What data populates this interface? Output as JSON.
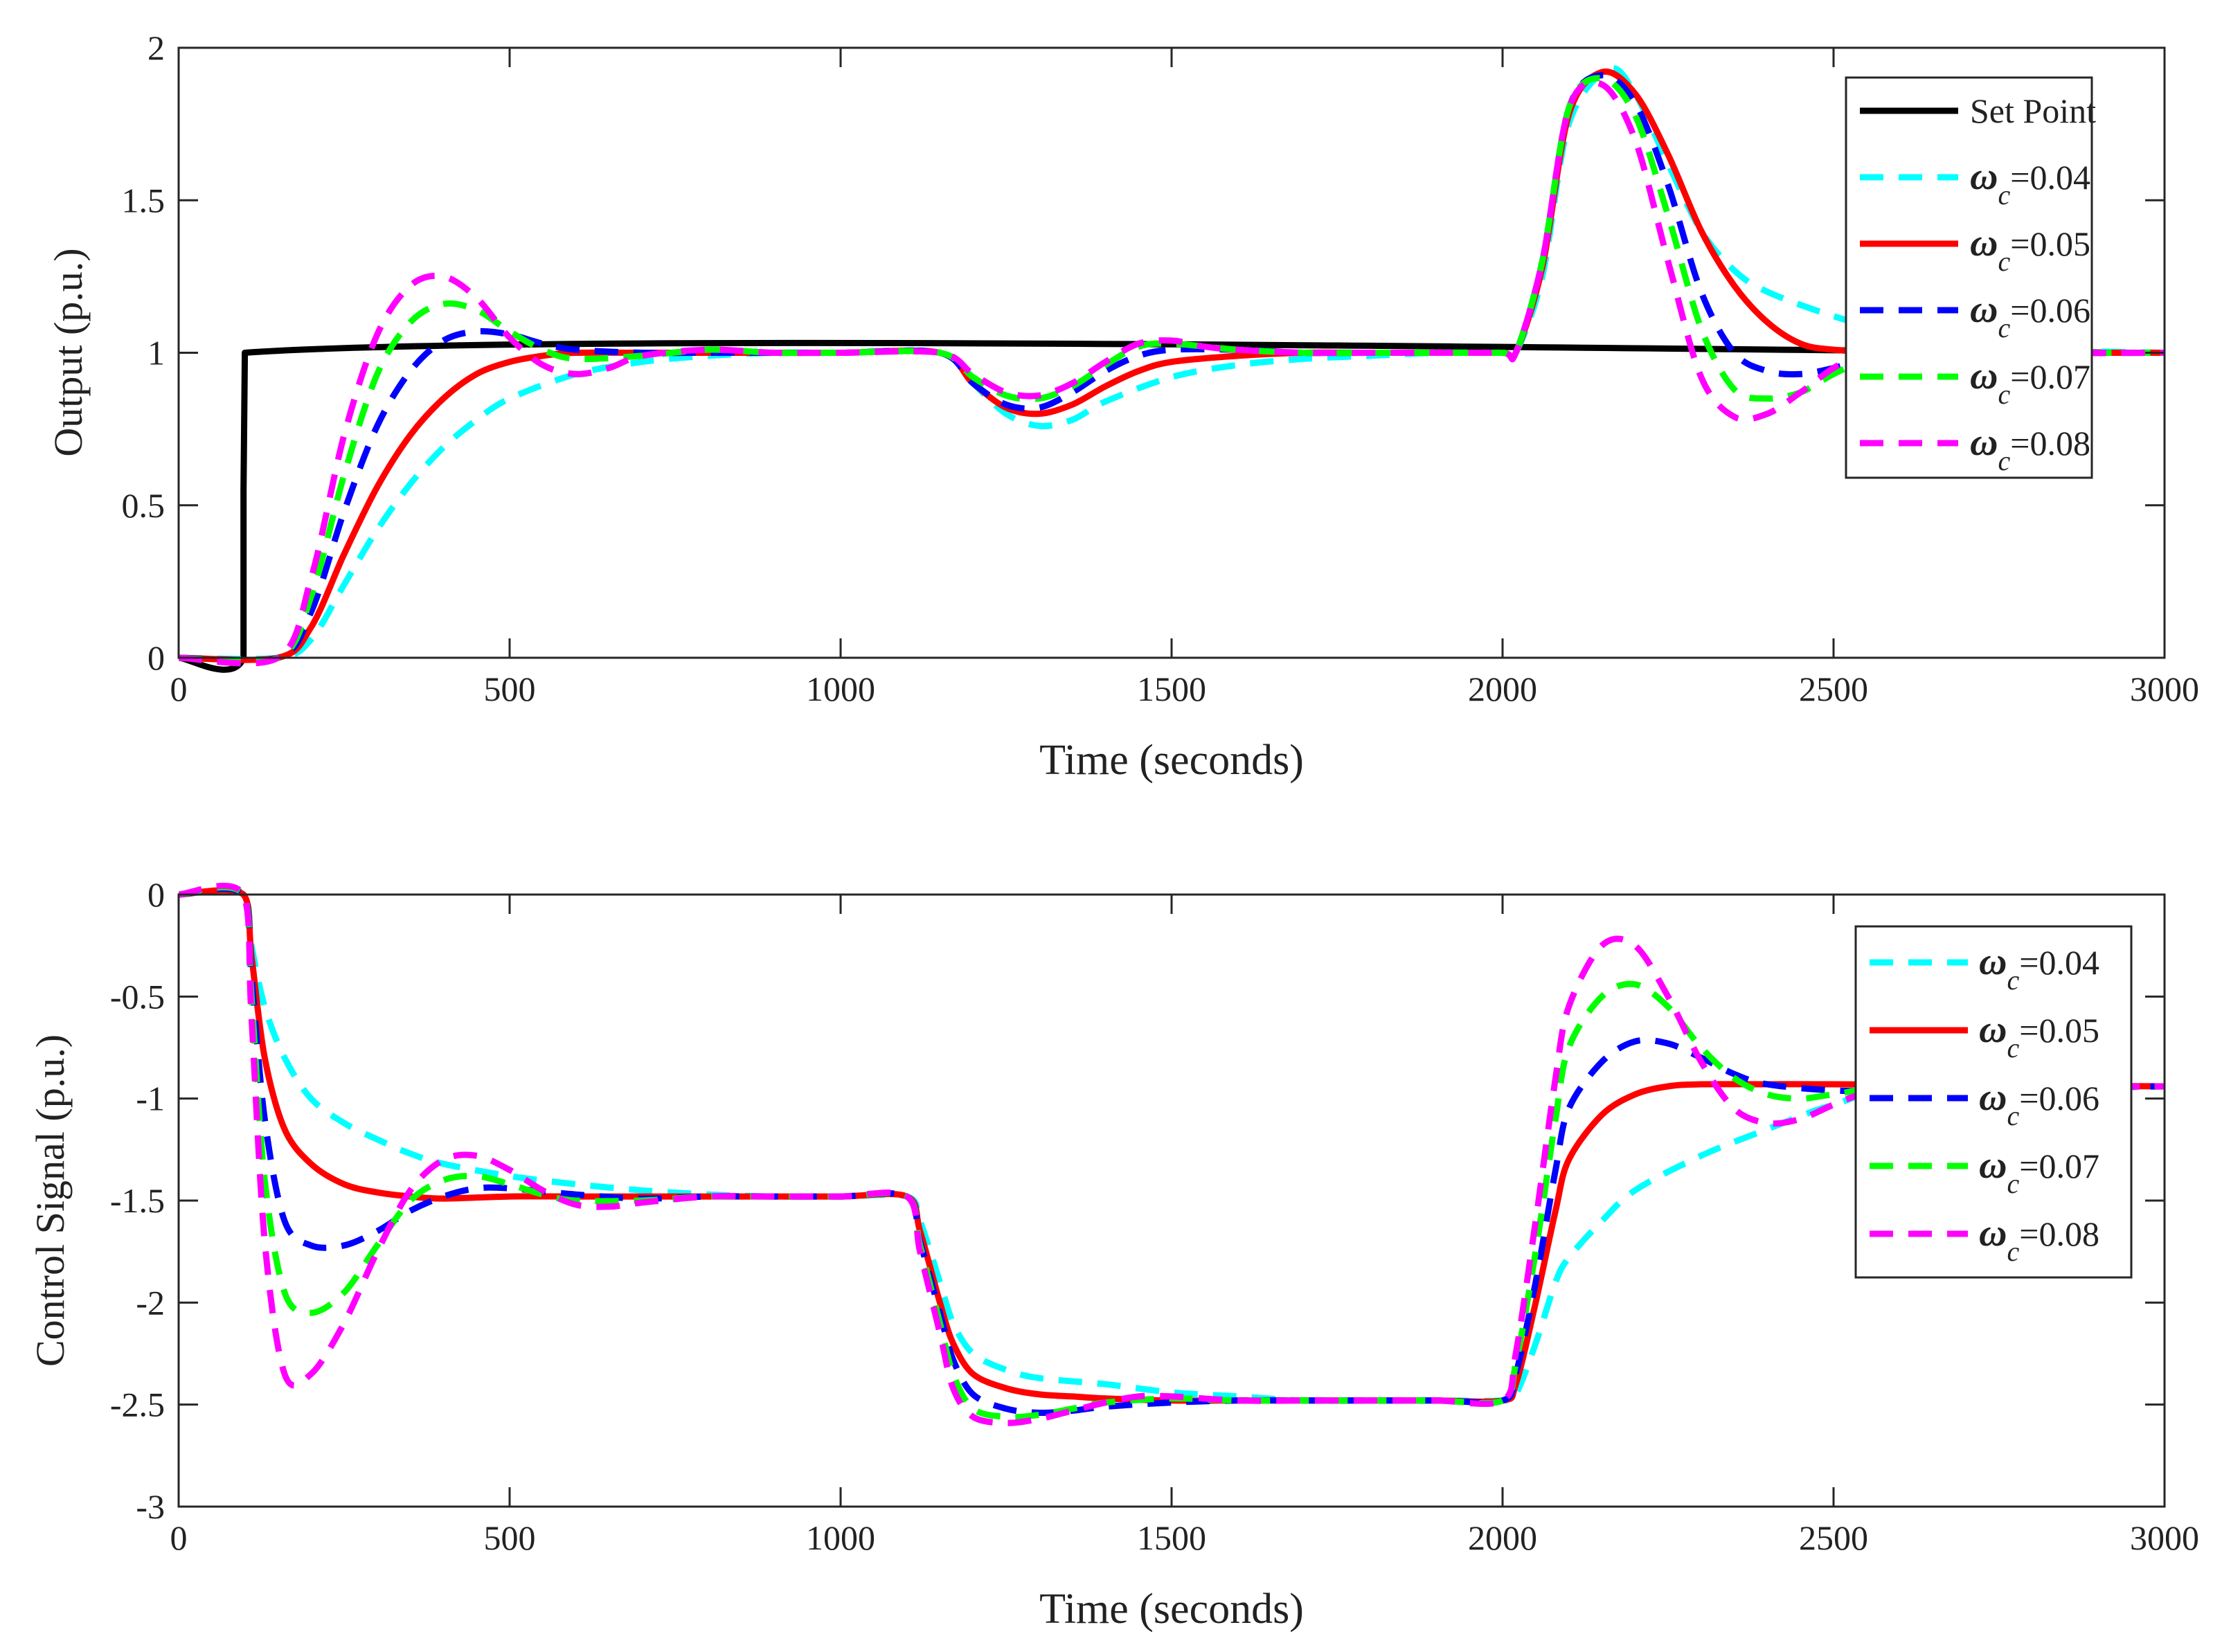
{
  "chart_data": [
    {
      "type": "line",
      "id": "top",
      "xlabel": "Time (seconds)",
      "ylabel": "Output (p.u.)",
      "xlim": [
        0,
        3000
      ],
      "ylim": [
        0,
        2
      ],
      "xticks": [
        "0",
        "500",
        "1000",
        "1500",
        "2000",
        "2500",
        "3000"
      ],
      "yticks": [
        "0",
        "0.5",
        "1",
        "1.5",
        "2"
      ],
      "legend_position": "top-right",
      "series": [
        {
          "name": "Set Point",
          "symbol": "",
          "sub": "",
          "value": "Set Point",
          "color": "#000000",
          "dash": "solid",
          "x": [
            0,
            98,
            98,
            100,
            3000
          ],
          "y": [
            0,
            0,
            0.55,
            1,
            1
          ]
        },
        {
          "name": "ωc=0.04",
          "symbol": "ω",
          "sub": "c",
          "value": "=0.04",
          "color": "#00FFFF",
          "dash": "dashed",
          "x": [
            0,
            150,
            200,
            250,
            300,
            350,
            400,
            450,
            500,
            600,
            700,
            800,
            900,
            1000,
            1150,
            1200,
            1250,
            1300,
            1350,
            1400,
            1500,
            1600,
            1700,
            1800,
            1900,
            2000,
            2020,
            2060,
            2100,
            2160,
            2200,
            2250,
            2300,
            2350,
            2400,
            2500,
            2600,
            2700,
            2800,
            3000
          ],
          "y": [
            0,
            0,
            0.06,
            0.24,
            0.42,
            0.57,
            0.69,
            0.78,
            0.85,
            0.93,
            0.97,
            0.99,
            1.0,
            1.0,
            1.0,
            0.9,
            0.8,
            0.76,
            0.78,
            0.84,
            0.92,
            0.96,
            0.98,
            0.99,
            1.0,
            1.0,
            1.0,
            1.25,
            1.75,
            1.93,
            1.85,
            1.62,
            1.4,
            1.27,
            1.2,
            1.12,
            1.06,
            1.03,
            1.01,
            1.0
          ]
        },
        {
          "name": "ωc=0.05",
          "symbol": "ω",
          "sub": "c",
          "value": "=0.05",
          "color": "#FF0000",
          "dash": "solid",
          "x": [
            0,
            150,
            200,
            250,
            300,
            350,
            400,
            450,
            500,
            550,
            600,
            700,
            800,
            900,
            1000,
            1150,
            1200,
            1250,
            1300,
            1350,
            1400,
            1450,
            1500,
            1600,
            1700,
            1800,
            1900,
            2000,
            2020,
            2060,
            2100,
            2150,
            2200,
            2250,
            2300,
            2350,
            2400,
            2450,
            2500,
            2600,
            2700,
            3000
          ],
          "y": [
            0,
            0,
            0.1,
            0.34,
            0.56,
            0.73,
            0.85,
            0.93,
            0.97,
            0.99,
            1.0,
            1.0,
            1.0,
            1.0,
            1.0,
            1.0,
            0.9,
            0.82,
            0.8,
            0.83,
            0.89,
            0.94,
            0.97,
            0.99,
            1.0,
            1.0,
            1.0,
            1.0,
            1.0,
            1.28,
            1.78,
            1.92,
            1.85,
            1.65,
            1.4,
            1.22,
            1.1,
            1.03,
            1.01,
            1.0,
            1.0,
            1.0
          ]
        },
        {
          "name": "ωc=0.06",
          "symbol": "ω",
          "sub": "c",
          "value": "=0.06",
          "color": "#0000FF",
          "dash": "dashed",
          "x": [
            0,
            150,
            200,
            250,
            300,
            350,
            400,
            450,
            500,
            550,
            600,
            700,
            800,
            900,
            1000,
            1150,
            1200,
            1250,
            1300,
            1350,
            1400,
            1450,
            1500,
            1600,
            1700,
            1800,
            1900,
            2000,
            2020,
            2060,
            2100,
            2150,
            2200,
            2250,
            2300,
            2350,
            2400,
            2450,
            2500,
            2550,
            2600,
            2700,
            3000
          ],
          "y": [
            0,
            0,
            0.15,
            0.48,
            0.76,
            0.94,
            1.04,
            1.07,
            1.06,
            1.03,
            1.01,
            1.0,
            1.0,
            1.0,
            1.0,
            1.0,
            0.9,
            0.83,
            0.82,
            0.87,
            0.94,
            0.99,
            1.01,
            1.01,
            1.0,
            1.0,
            1.0,
            1.0,
            1.0,
            1.3,
            1.8,
            1.91,
            1.82,
            1.55,
            1.2,
            1.0,
            0.94,
            0.93,
            0.95,
            0.98,
            1.0,
            1.0,
            1.0
          ]
        },
        {
          "name": "ωc=0.07",
          "symbol": "ω",
          "sub": "c",
          "value": "=0.07",
          "color": "#00FF00",
          "dash": "dashed",
          "x": [
            0,
            150,
            200,
            250,
            300,
            350,
            400,
            450,
            500,
            550,
            600,
            700,
            800,
            900,
            1000,
            1150,
            1200,
            1250,
            1300,
            1350,
            1400,
            1450,
            1500,
            1600,
            1700,
            1800,
            1900,
            2000,
            2020,
            2060,
            2100,
            2150,
            2200,
            2250,
            2300,
            2350,
            2400,
            2450,
            2500,
            2550,
            2600,
            2700,
            3000
          ],
          "y": [
            0,
            0,
            0.2,
            0.6,
            0.93,
            1.1,
            1.16,
            1.14,
            1.07,
            1.01,
            0.98,
            0.99,
            1.01,
            1.0,
            1.0,
            1.0,
            0.92,
            0.86,
            0.85,
            0.89,
            0.96,
            1.02,
            1.03,
            1.01,
            1.0,
            1.0,
            1.0,
            1.0,
            1.0,
            1.3,
            1.8,
            1.9,
            1.78,
            1.45,
            1.08,
            0.88,
            0.85,
            0.87,
            0.93,
            0.98,
            1.01,
            1.0,
            1.0
          ]
        },
        {
          "name": "ωc=0.08",
          "symbol": "ω",
          "sub": "c",
          "value": "=0.08",
          "color": "#FF00FF",
          "dash": "dashed",
          "x": [
            0,
            150,
            200,
            250,
            300,
            350,
            400,
            450,
            500,
            550,
            600,
            650,
            700,
            800,
            900,
            1000,
            1150,
            1200,
            1250,
            1300,
            1350,
            1400,
            1450,
            1500,
            1550,
            1600,
            1700,
            1800,
            1900,
            2000,
            2020,
            2060,
            2100,
            2150,
            2200,
            2250,
            2300,
            2350,
            2400,
            2450,
            2500,
            2550,
            2600,
            2700,
            3000
          ],
          "y": [
            0,
            0,
            0.26,
            0.73,
            1.06,
            1.22,
            1.25,
            1.18,
            1.05,
            0.96,
            0.93,
            0.95,
            0.99,
            1.01,
            1.0,
            1.0,
            1.0,
            0.93,
            0.87,
            0.86,
            0.9,
            0.97,
            1.03,
            1.04,
            1.02,
            1.01,
            1.0,
            1.0,
            1.0,
            1.0,
            1.0,
            1.3,
            1.8,
            1.88,
            1.7,
            1.3,
            0.92,
            0.79,
            0.8,
            0.87,
            0.95,
            1.0,
            1.02,
            1.0,
            1.0
          ]
        }
      ]
    },
    {
      "type": "line",
      "id": "bottom",
      "xlabel": "Time (seconds)",
      "ylabel": "Control Signal (p.u.)",
      "xlim": [
        0,
        3000
      ],
      "ylim": [
        -3,
        0
      ],
      "xticks": [
        "0",
        "500",
        "1000",
        "1500",
        "2000",
        "2500",
        "3000"
      ],
      "yticks": [
        "-3",
        "-2.5",
        "-2",
        "-1.5",
        "-1",
        "-0.5",
        "0"
      ],
      "legend_position": "top-right",
      "series": [
        {
          "name": "ωc=0.04",
          "symbol": "ω",
          "sub": "c",
          "value": "=0.04",
          "color": "#00FFFF",
          "dash": "dashed",
          "x": [
            0,
            98,
            110,
            130,
            160,
            200,
            250,
            300,
            350,
            400,
            500,
            600,
            700,
            800,
            900,
            1000,
            1100,
            1120,
            1150,
            1170,
            1200,
            1250,
            1300,
            1400,
            1500,
            1600,
            1700,
            1800,
            1900,
            2000,
            2020,
            2050,
            2080,
            2100,
            2150,
            2200,
            2300,
            2400,
            2500,
            2600,
            3000
          ],
          "y": [
            0,
            0,
            -0.25,
            -0.55,
            -0.8,
            -1.0,
            -1.12,
            -1.2,
            -1.27,
            -1.32,
            -1.38,
            -1.42,
            -1.45,
            -1.47,
            -1.48,
            -1.48,
            -1.48,
            -1.6,
            -1.9,
            -2.1,
            -2.25,
            -2.33,
            -2.37,
            -2.4,
            -2.44,
            -2.46,
            -2.48,
            -2.48,
            -2.48,
            -2.48,
            -2.45,
            -2.2,
            -1.9,
            -1.78,
            -1.6,
            -1.45,
            -1.28,
            -1.15,
            -1.03,
            -0.97,
            -0.94
          ]
        },
        {
          "name": "ωc=0.05",
          "symbol": "ω",
          "sub": "c",
          "value": "=0.05",
          "color": "#FF0000",
          "dash": "solid",
          "x": [
            0,
            98,
            110,
            130,
            160,
            200,
            250,
            300,
            350,
            400,
            500,
            600,
            700,
            800,
            900,
            1000,
            1100,
            1120,
            1150,
            1170,
            1200,
            1250,
            1300,
            1350,
            1400,
            1500,
            1600,
            1700,
            1800,
            1900,
            2000,
            2020,
            2050,
            2080,
            2100,
            2150,
            2200,
            2250,
            2300,
            2400,
            2500,
            3000
          ],
          "y": [
            0,
            0,
            -0.3,
            -0.8,
            -1.15,
            -1.32,
            -1.42,
            -1.46,
            -1.48,
            -1.49,
            -1.48,
            -1.48,
            -1.48,
            -1.48,
            -1.48,
            -1.48,
            -1.48,
            -1.65,
            -2.0,
            -2.2,
            -2.35,
            -2.42,
            -2.45,
            -2.46,
            -2.47,
            -2.48,
            -2.48,
            -2.48,
            -2.48,
            -2.48,
            -2.48,
            -2.4,
            -2.0,
            -1.55,
            -1.3,
            -1.08,
            -0.98,
            -0.94,
            -0.93,
            -0.93,
            -0.93,
            -0.94
          ]
        },
        {
          "name": "ωc=0.06",
          "symbol": "ω",
          "sub": "c",
          "value": "=0.06",
          "color": "#0000FF",
          "dash": "dashed",
          "x": [
            0,
            98,
            110,
            130,
            160,
            200,
            250,
            300,
            350,
            400,
            450,
            500,
            600,
            700,
            800,
            900,
            1000,
            1100,
            1120,
            1150,
            1170,
            1200,
            1250,
            1300,
            1350,
            1400,
            1500,
            1600,
            1700,
            1800,
            1900,
            2000,
            2020,
            2050,
            2080,
            2100,
            2150,
            2200,
            2250,
            2300,
            2350,
            2400,
            2500,
            2600,
            3000
          ],
          "y": [
            0,
            0,
            -0.4,
            -1.1,
            -1.6,
            -1.72,
            -1.72,
            -1.65,
            -1.55,
            -1.48,
            -1.44,
            -1.44,
            -1.47,
            -1.49,
            -1.48,
            -1.48,
            -1.48,
            -1.48,
            -1.7,
            -2.05,
            -2.28,
            -2.45,
            -2.52,
            -2.54,
            -2.53,
            -2.51,
            -2.49,
            -2.48,
            -2.48,
            -2.48,
            -2.48,
            -2.48,
            -2.35,
            -1.9,
            -1.35,
            -1.05,
            -0.82,
            -0.72,
            -0.73,
            -0.8,
            -0.88,
            -0.93,
            -0.96,
            -0.96,
            -0.94
          ]
        },
        {
          "name": "ωc=0.07",
          "symbol": "ω",
          "sub": "c",
          "value": "=0.07",
          "color": "#00FF00",
          "dash": "dashed",
          "x": [
            0,
            98,
            110,
            130,
            160,
            200,
            250,
            300,
            350,
            400,
            450,
            500,
            550,
            600,
            700,
            800,
            900,
            1000,
            1100,
            1120,
            1150,
            1170,
            1200,
            1250,
            1300,
            1350,
            1400,
            1500,
            1600,
            1700,
            1800,
            1900,
            2000,
            2020,
            2050,
            2080,
            2100,
            2150,
            2200,
            2250,
            2300,
            2350,
            2400,
            2450,
            2500,
            2600,
            3000
          ],
          "y": [
            0,
            0,
            -0.5,
            -1.4,
            -1.95,
            -2.05,
            -1.95,
            -1.72,
            -1.5,
            -1.4,
            -1.38,
            -1.42,
            -1.47,
            -1.5,
            -1.5,
            -1.48,
            -1.48,
            -1.48,
            -1.48,
            -1.72,
            -2.1,
            -2.35,
            -2.52,
            -2.56,
            -2.55,
            -2.52,
            -2.49,
            -2.47,
            -2.48,
            -2.48,
            -2.48,
            -2.48,
            -2.48,
            -2.3,
            -1.75,
            -1.1,
            -0.75,
            -0.5,
            -0.44,
            -0.55,
            -0.75,
            -0.9,
            -0.98,
            -1.0,
            -0.98,
            -0.95,
            -0.94
          ]
        },
        {
          "name": "ωc=0.08",
          "symbol": "ω",
          "sub": "c",
          "value": "=0.08",
          "color": "#FF00FF",
          "dash": "dashed",
          "x": [
            0,
            98,
            110,
            130,
            160,
            200,
            250,
            300,
            350,
            400,
            450,
            500,
            550,
            600,
            650,
            700,
            800,
            900,
            1000,
            1100,
            1120,
            1150,
            1170,
            1200,
            1250,
            1300,
            1350,
            1400,
            1450,
            1500,
            1600,
            1700,
            1800,
            1900,
            2000,
            2020,
            2050,
            2080,
            2100,
            2150,
            2200,
            2250,
            2300,
            2350,
            2400,
            2450,
            2500,
            2550,
            2600,
            3000
          ],
          "y": [
            0,
            0,
            -0.6,
            -1.7,
            -2.35,
            -2.35,
            -2.1,
            -1.75,
            -1.45,
            -1.3,
            -1.28,
            -1.35,
            -1.45,
            -1.52,
            -1.53,
            -1.51,
            -1.48,
            -1.48,
            -1.48,
            -1.48,
            -1.75,
            -2.15,
            -2.42,
            -2.56,
            -2.59,
            -2.57,
            -2.53,
            -2.49,
            -2.46,
            -2.46,
            -2.48,
            -2.48,
            -2.48,
            -2.48,
            -2.48,
            -2.25,
            -1.6,
            -0.9,
            -0.55,
            -0.25,
            -0.25,
            -0.5,
            -0.82,
            -1.05,
            -1.12,
            -1.1,
            -1.03,
            -0.97,
            -0.95,
            -0.94
          ]
        }
      ]
    }
  ]
}
